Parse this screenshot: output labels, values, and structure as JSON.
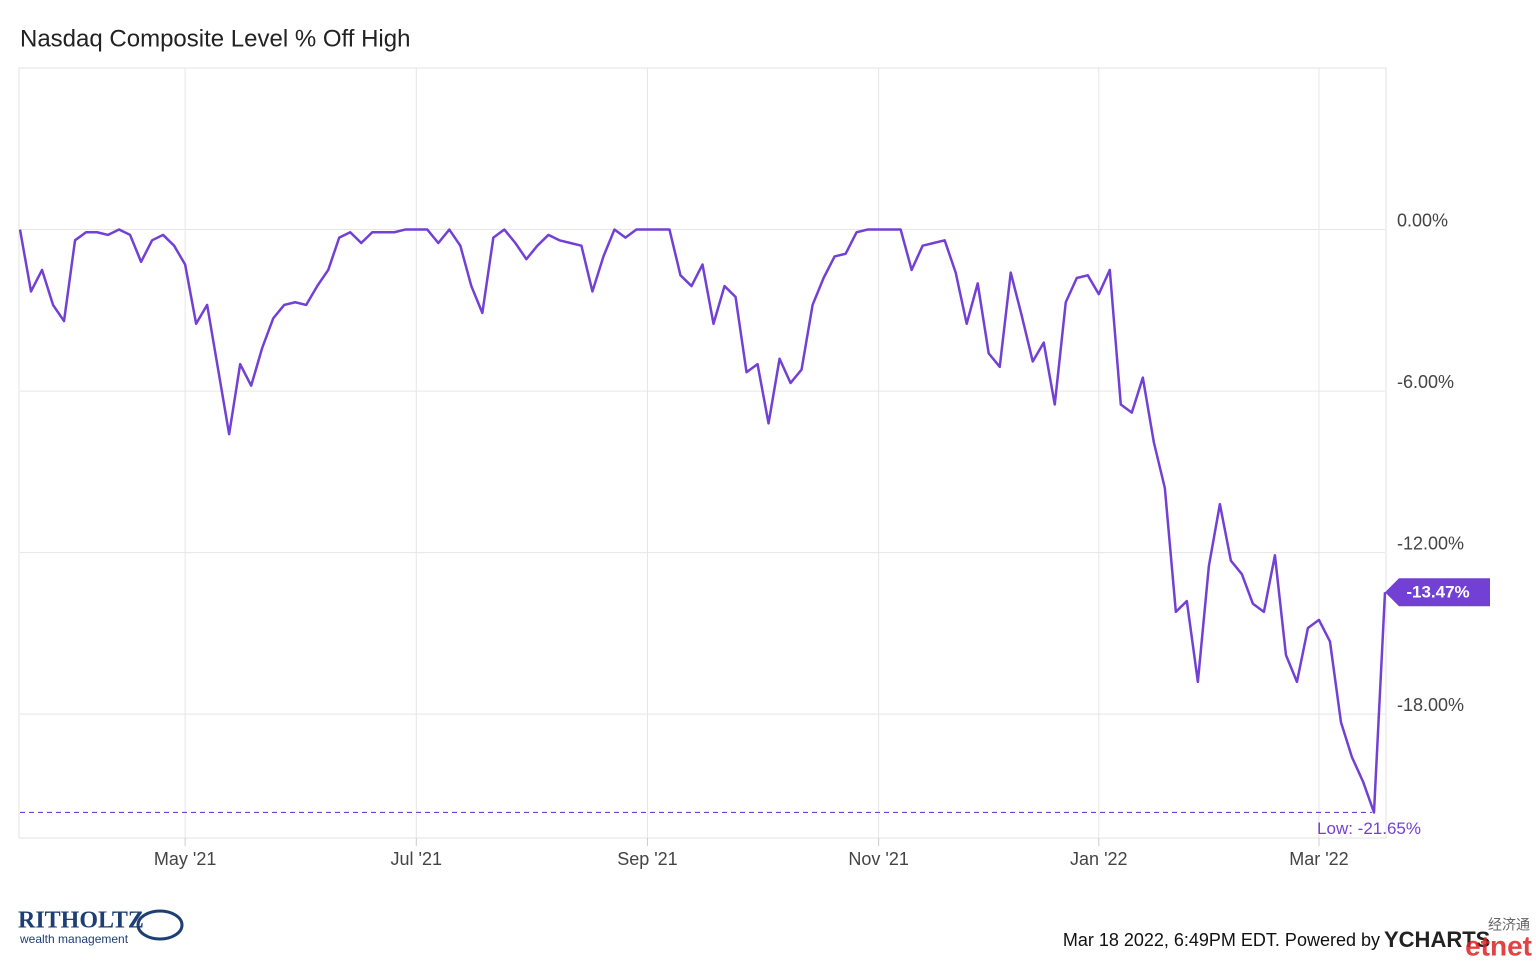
{
  "chart_data": {
    "type": "line",
    "title": "Nasdaq Composite Level % Off High",
    "categories": [
      null,
      null,
      null,
      null,
      null,
      null,
      null,
      null,
      null,
      null,
      null,
      null,
      null,
      null,
      null,
      "May '21",
      null,
      null,
      null,
      null,
      null,
      null,
      null,
      null,
      null,
      null,
      null,
      null,
      null,
      null,
      null,
      null,
      null,
      null,
      null,
      null,
      "Jul '21",
      null,
      null,
      null,
      null,
      null,
      null,
      null,
      null,
      null,
      null,
      null,
      null,
      null,
      null,
      null,
      null,
      null,
      null,
      null,
      null,
      "Sep '21",
      null,
      null,
      null,
      null,
      null,
      null,
      null,
      null,
      null,
      null,
      null,
      null,
      null,
      null,
      null,
      null,
      null,
      null,
      null,
      null,
      "Nov '21",
      null,
      null,
      null,
      null,
      null,
      null,
      null,
      null,
      null,
      null,
      null,
      null,
      null,
      null,
      null,
      null,
      null,
      null,
      null,
      "Jan '22",
      null,
      null,
      null,
      null,
      null,
      null,
      null,
      null,
      null,
      null,
      null,
      null,
      null,
      null,
      null,
      null,
      null,
      null,
      null,
      "Mar '22",
      null,
      null,
      null,
      null,
      null,
      null
    ],
    "series": [
      {
        "name": "Nasdaq Composite Level % Off High",
        "color": "#7340d6",
        "values": [
          0,
          -2.3,
          -1.5,
          -2.8,
          -3.4,
          -0.4,
          -0.1,
          -0.1,
          -0.2,
          0,
          -0.2,
          -1.2,
          -0.4,
          -0.2,
          -0.6,
          -1.3,
          -3.5,
          -2.8,
          -5.2,
          -7.6,
          -5.0,
          -5.8,
          -4.4,
          -3.3,
          -2.8,
          -2.7,
          -2.8,
          -2.1,
          -1.5,
          -0.3,
          -0.1,
          -0.5,
          -0.1,
          -0.1,
          -0.1,
          0,
          0,
          0,
          -0.5,
          0,
          -0.6,
          -2.1,
          -3.1,
          -0.3,
          0,
          -0.5,
          -1.1,
          -0.6,
          -0.2,
          -0.4,
          -0.5,
          -0.6,
          -2.3,
          -1.0,
          0,
          -0.3,
          0,
          0,
          0,
          0,
          -1.7,
          -2.1,
          -1.3,
          -3.5,
          -2.1,
          -2.5,
          -5.3,
          -5.0,
          -7.2,
          -4.8,
          -5.7,
          -5.2,
          -2.8,
          -1.8,
          -1.0,
          -0.9,
          -0.1,
          0,
          0,
          0,
          0,
          -1.5,
          -0.6,
          -0.5,
          -0.4,
          -1.6,
          -3.5,
          -2.0,
          -4.6,
          -5.1,
          -1.6,
          -3.2,
          -4.9,
          -4.2,
          -6.5,
          -2.7,
          -1.8,
          -1.7,
          -2.4,
          -1.5,
          -6.5,
          -6.8,
          -5.5,
          -7.9,
          -9.6,
          -14.2,
          -13.8,
          -16.8,
          -12.5,
          -10.2,
          -12.3,
          -12.8,
          -13.9,
          -14.2,
          -12.1,
          -15.8,
          -16.8,
          -14.8,
          -14.5,
          -15.3,
          -18.3,
          -19.6,
          -20.5,
          -21.65,
          -13.47
        ]
      }
    ],
    "end_label": "-13.47%",
    "low_value": -21.65,
    "low_label": "Low: -21.65%",
    "ylim": [
      -22.6,
      6
    ],
    "yticks": [
      {
        "value": 0,
        "label": "0.00%"
      },
      {
        "value": -6,
        "label": "-6.00%"
      },
      {
        "value": -12,
        "label": "-12.00%"
      },
      {
        "value": -18,
        "label": "-18.00%"
      }
    ],
    "grid": true
  },
  "footer": {
    "brand": "RITHOLTZ",
    "brand_sub": "wealth management",
    "timestamp": "Mar 18 2022, 6:49PM EDT. Powered by",
    "provider": "YCHARTS",
    "watermark": "经济通",
    "watermark_sub": "etnet"
  }
}
